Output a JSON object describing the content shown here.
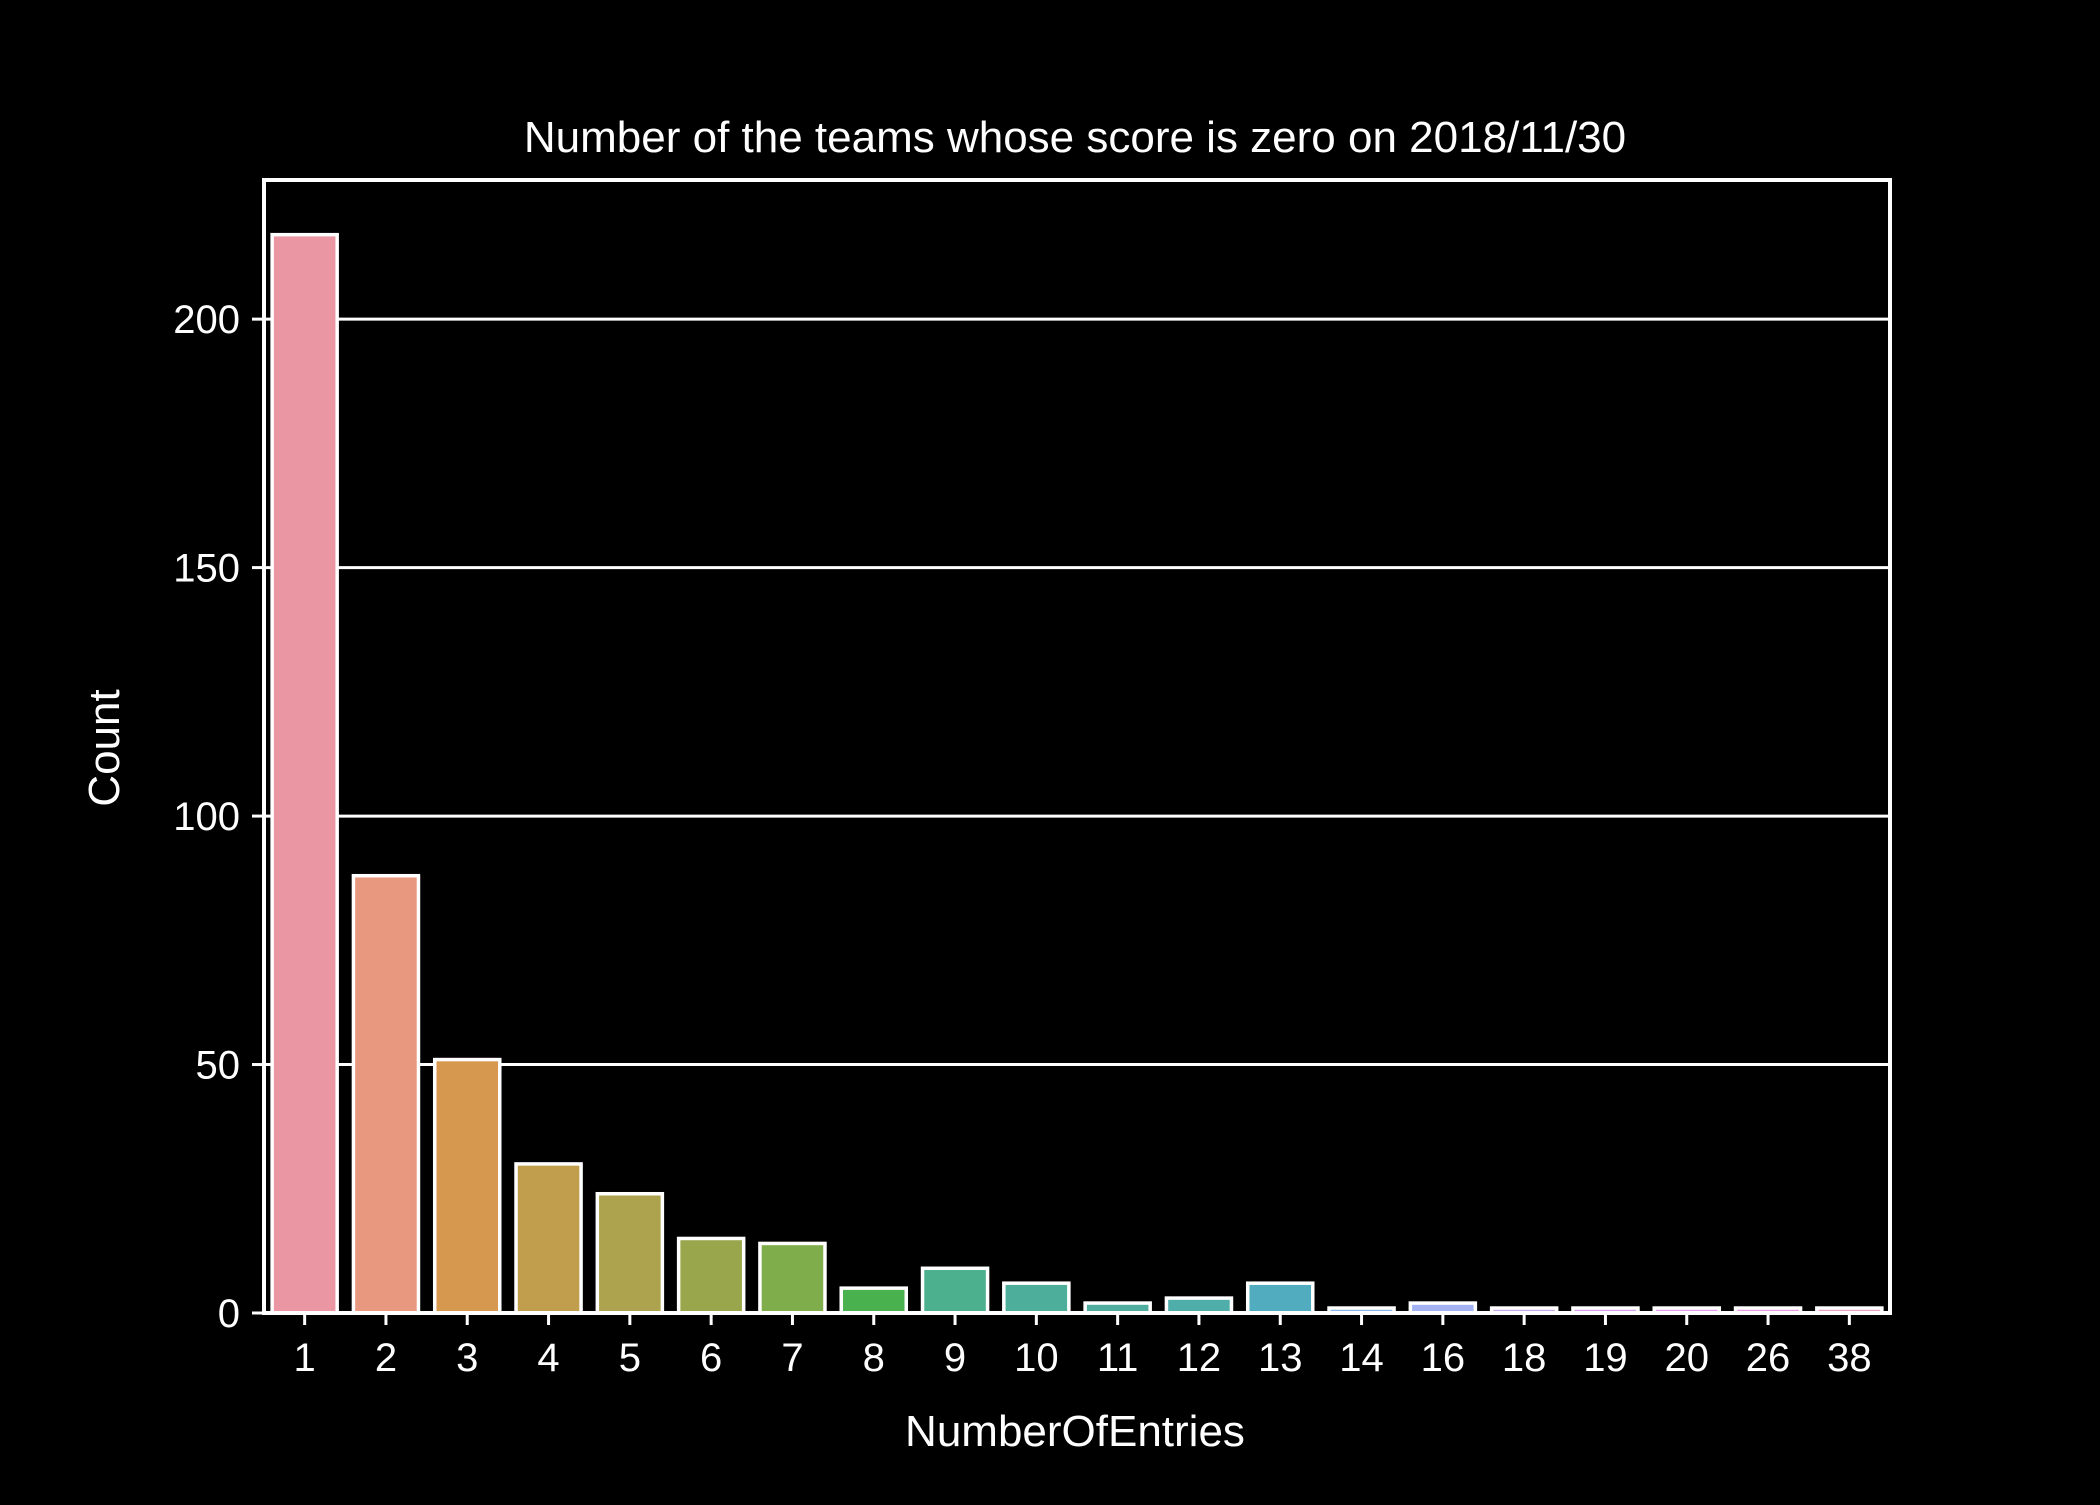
{
  "chart_data": {
    "type": "bar",
    "title": "Number of the teams whose score is zero on 2018/11/30",
    "xlabel": "NumberOfEntries",
    "ylabel": "Count",
    "categories": [
      "1",
      "2",
      "3",
      "4",
      "5",
      "6",
      "7",
      "8",
      "9",
      "10",
      "11",
      "12",
      "13",
      "14",
      "16",
      "18",
      "19",
      "20",
      "26",
      "38"
    ],
    "values": [
      217,
      88,
      51,
      30,
      24,
      15,
      14,
      5,
      9,
      6,
      2,
      3,
      6,
      1,
      2,
      1,
      1,
      1,
      1,
      1
    ],
    "colors": [
      "#ea96a3",
      "#e8987f",
      "#d6974f",
      "#c19d4e",
      "#ada24d",
      "#9aa64c",
      "#7fad4c",
      "#4ab14f",
      "#4cb08f",
      "#4daf9b",
      "#4fae9f",
      "#50aeaa",
      "#52acbf",
      "#86b2ed",
      "#a3b2f3",
      "#c6a8f0",
      "#d59ef1",
      "#e49df0",
      "#eb9ce0",
      "#ee9fc8"
    ],
    "ylim": [
      0,
      228
    ],
    "yticks": [
      0,
      50,
      100,
      150,
      200
    ],
    "grid": "y",
    "background": "#000000",
    "foreground": "#ffffff"
  }
}
